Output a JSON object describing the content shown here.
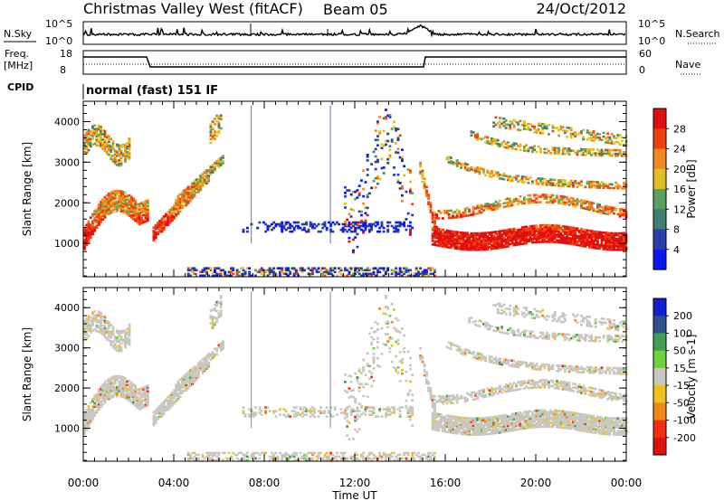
{
  "header": {
    "title": "Christmas Valley West (fitACF)",
    "beam": "Beam 05",
    "date": "24/Oct/2012"
  },
  "strips": {
    "nsky_label": "N.Sky",
    "nsearch_label": "N.Search",
    "noise_ticks": [
      "10^5",
      "10^0"
    ],
    "freq_label_1": "Freq.",
    "freq_label_2": "[MHz]",
    "freq_ticks": [
      "18",
      "8"
    ],
    "nave_label": "Nave",
    "nave_ticks": [
      "60",
      "0"
    ],
    "cpid_label": "CPID",
    "cpid_value": "normal (fast) 151 IF"
  },
  "chart_data": [
    {
      "type": "heatmap",
      "name": "power",
      "ylabel": "Slant Range [km]",
      "ylim": [
        180,
        4500
      ],
      "yticks": [
        "1000",
        "2000",
        "3000",
        "4000"
      ],
      "xlim": [
        0,
        24
      ],
      "colorbar_label": "Power [dB]",
      "colorbar_ticks": [
        "4",
        "8",
        "12",
        "16",
        "20",
        "24",
        "28"
      ],
      "colors": [
        "#0a17f0",
        "#2a3da8",
        "#3f7f70",
        "#5aa060",
        "#e0c020",
        "#f08820",
        "#f04010",
        "#e01010"
      ]
    },
    {
      "type": "heatmap",
      "name": "velocity",
      "ylabel": "Slant Range [km]",
      "ylim": [
        180,
        4500
      ],
      "yticks": [
        "1000",
        "2000",
        "3000",
        "4000"
      ],
      "xlim": [
        0,
        24
      ],
      "colorbar_label": "Velocity [m s-1]",
      "colorbar_ticks": [
        "200",
        "100",
        "50",
        "15",
        "-15",
        "-50",
        "-100",
        "-200"
      ],
      "colors": [
        "#1020d0",
        "#305090",
        "#40a050",
        "#70d040",
        "#c8c8c0",
        "#f0c020",
        "#f08818",
        "#f03010",
        "#e01010"
      ]
    }
  ],
  "xaxis": {
    "ticks": [
      "00:00",
      "04:00",
      "08:00",
      "12:00",
      "16:00",
      "20:00",
      "00:00"
    ],
    "label": "Time UT"
  }
}
